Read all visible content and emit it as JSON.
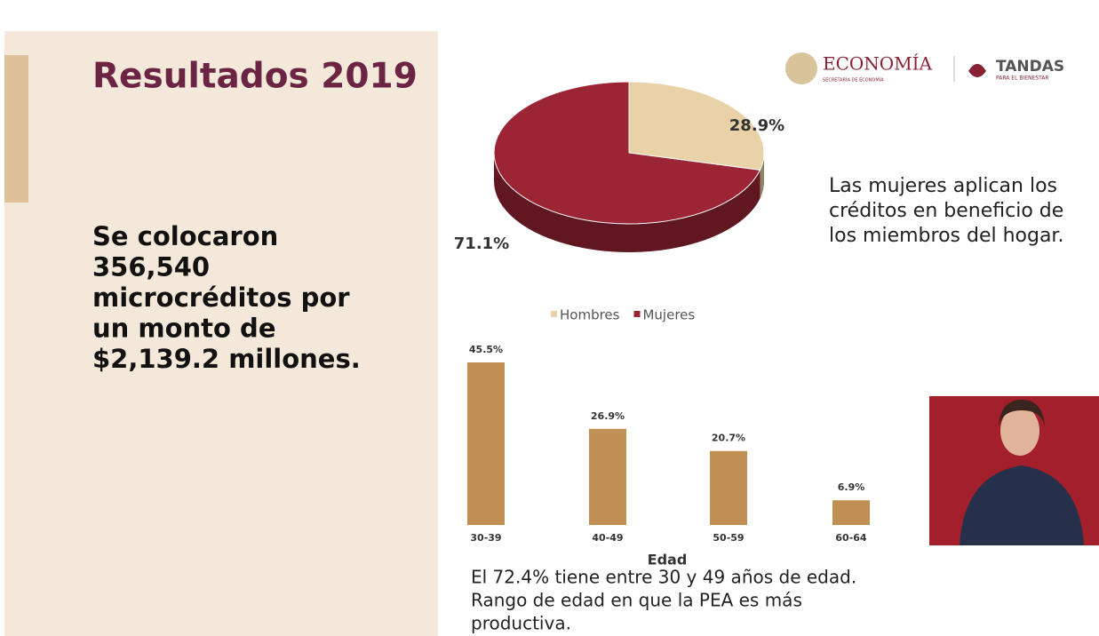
{
  "slide": {
    "title": "Resultados 2019",
    "summary": [
      "Se colocaron",
      "356,540",
      "microcréditos por",
      "un monto de",
      "$2,139.2 millones."
    ],
    "note": [
      "Las mujeres aplican los",
      "créditos en beneficio de",
      "los miembros del hogar."
    ],
    "footer": [
      "El 72.4% tiene entre 30 y 49 años de edad.",
      "Rango de edad en que la PEA es más",
      "productiva."
    ],
    "logo": {
      "economia": "ECONOMÍA",
      "economia_sub": "SECRETARÍA DE ECONOMÍA",
      "tandas": "TANDAS",
      "tandas_sub": "PARA EL BIENESTAR"
    }
  },
  "chart_data": [
    {
      "type": "pie",
      "categories": [
        "Hombres",
        "Mujeres"
      ],
      "values": [
        28.9,
        71.1
      ],
      "value_labels": [
        "28.9%",
        "71.1%"
      ],
      "colors": [
        "#e9d1a8",
        "#9b2535"
      ],
      "legend": "bottom"
    },
    {
      "type": "bar",
      "categories": [
        "30-39",
        "40-49",
        "50-59",
        "60-64"
      ],
      "values": [
        45.5,
        26.9,
        20.7,
        6.9
      ],
      "value_labels": [
        "45.5%",
        "26.9%",
        "20.7%",
        "6.9%"
      ],
      "color": "#c08f53",
      "xlabel": "Edad"
    }
  ]
}
